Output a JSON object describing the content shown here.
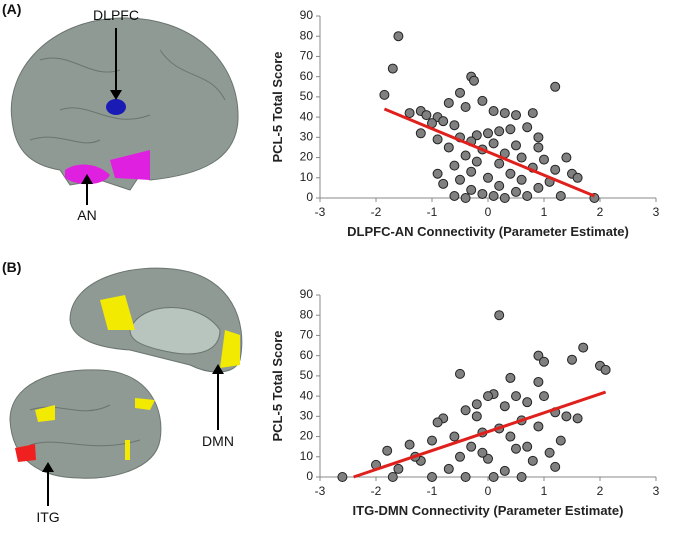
{
  "figure": {
    "panels": [
      {
        "label": "(A)",
        "annotations": [
          "DLPFC",
          "AN"
        ]
      },
      {
        "label": "(B)",
        "annotations": [
          "DMN",
          "ITG"
        ]
      }
    ]
  },
  "chart_data": [
    {
      "type": "scatter",
      "x_label": "DLPFC-AN Connectivity (Parameter Estimate)",
      "y_label": "PCL-5 Total Score",
      "xlim": [
        -3,
        3
      ],
      "ylim": [
        0,
        90
      ],
      "xticks": [
        -3,
        -2,
        -1,
        0,
        1,
        2,
        3
      ],
      "yticks": [
        0,
        10,
        20,
        30,
        40,
        50,
        60,
        70,
        80,
        90
      ],
      "color": "#808080",
      "x": [
        -1.6,
        -1.7,
        -1.85,
        1.2,
        -0.3,
        -0.25,
        -0.5,
        -0.7,
        -1.2,
        -1.4,
        -1.1,
        -0.9,
        -0.8,
        -1,
        -0.6,
        -0.4,
        -0.1,
        0.1,
        0.3,
        0.5,
        0.8,
        0.7,
        0.4,
        0.2,
        0,
        -0.2,
        -0.5,
        -0.9,
        -1.2,
        -0.3,
        0.1,
        0.5,
        0.9,
        -0.7,
        -0.1,
        0.3,
        -0.4,
        0.6,
        1,
        -0.2,
        0.2,
        -0.6,
        0.8,
        1.2,
        -0.9,
        -0.3,
        0.4,
        1.5,
        0,
        -0.5,
        0.6,
        1.1,
        -0.8,
        0.2,
        0.9,
        -0.3,
        0.5,
        -0.1,
        0.7,
        1.3,
        -0.6,
        0.1,
        1.9,
        -0.4,
        0.3,
        1.6,
        1.4,
        0.9
      ],
      "values": [
        80,
        64,
        51,
        55,
        60,
        58,
        52,
        47,
        43,
        42,
        41,
        40,
        38,
        37,
        36,
        45,
        48,
        43,
        42,
        41,
        42,
        35,
        34,
        33,
        32,
        31,
        30,
        29,
        32,
        28,
        27,
        26,
        25,
        25,
        24,
        22,
        21,
        20,
        19,
        18,
        17,
        16,
        15,
        14,
        12,
        13,
        12,
        12,
        10,
        9,
        9,
        8,
        7,
        6,
        5,
        4,
        3,
        2,
        1,
        1,
        1,
        1,
        0,
        0,
        0,
        10,
        20,
        30
      ],
      "trend": {
        "x": [
          -1.85,
          1.9
        ],
        "y": [
          44,
          1
        ],
        "color": "#e0201c"
      }
    },
    {
      "type": "scatter",
      "x_label": "ITG-DMN Connectivity (Parameter Estimate)",
      "y_label": "PCL-5 Total Score",
      "xlim": [
        -3,
        3
      ],
      "ylim": [
        0,
        90
      ],
      "xticks": [
        -3,
        -2,
        -1,
        0,
        1,
        2,
        3
      ],
      "yticks": [
        0,
        10,
        20,
        30,
        40,
        50,
        60,
        70,
        80,
        90
      ],
      "color": "#808080",
      "x": [
        0.2,
        1.7,
        2,
        2.1,
        1.5,
        0.9,
        1,
        -0.5,
        0.4,
        0.9,
        0.1,
        0,
        0.5,
        0.7,
        -0.2,
        -0.4,
        0.3,
        1.2,
        1.4,
        1.6,
        -0.8,
        -0.9,
        0.6,
        0.9,
        0.2,
        -0.1,
        -0.6,
        -1,
        -1.4,
        -1.8,
        -0.3,
        0.5,
        1.1,
        -0.5,
        0,
        0.8,
        -1.2,
        -2,
        -1.6,
        -2.6,
        -1.7,
        -1,
        -0.4,
        0.1,
        0.6,
        0.3,
        -0.7,
        1.2,
        0.4,
        -0.2,
        1,
        1.3,
        -1.3,
        0.7,
        -0.1
      ],
      "values": [
        80,
        64,
        55,
        53,
        58,
        60,
        57,
        51,
        49,
        47,
        41,
        40,
        40,
        37,
        36,
        33,
        35,
        32,
        30,
        29,
        29,
        27,
        28,
        25,
        24,
        22,
        20,
        18,
        16,
        13,
        15,
        14,
        12,
        10,
        9,
        8,
        8,
        6,
        4,
        0,
        0,
        0,
        0,
        0,
        0,
        3,
        4,
        5,
        20,
        30,
        40,
        18,
        10,
        15,
        12
      ],
      "trend": {
        "x": [
          -2.4,
          2.1
        ],
        "y": [
          0,
          42
        ],
        "color": "#e0201c"
      }
    }
  ]
}
